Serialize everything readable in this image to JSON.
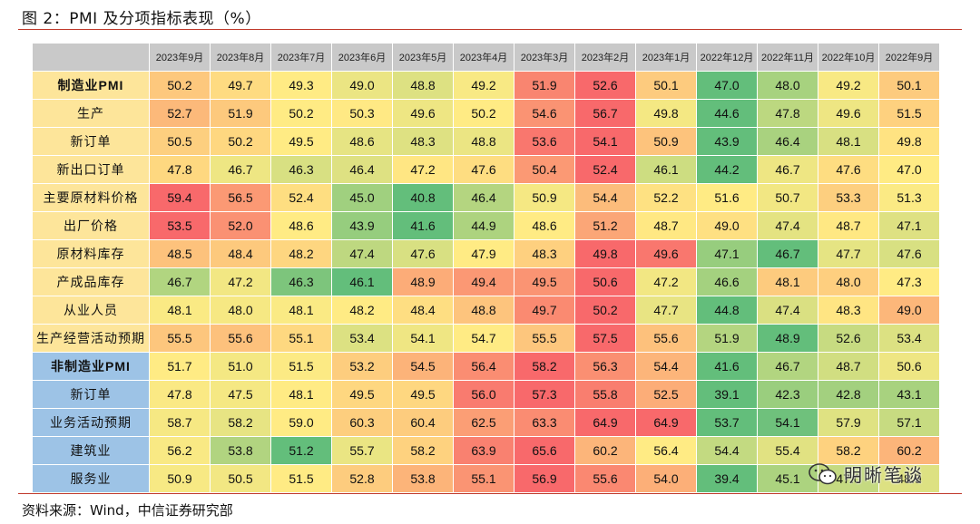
{
  "title": "图 2：PMI 及分项指标表现（%）",
  "source": "资料来源：Wind，中信证券研究部",
  "watermark": "明晰笔谈",
  "months": [
    "2023年9月",
    "2023年8月",
    "2023年7月",
    "2023年6月",
    "2023年5月",
    "2023年4月",
    "2023年3月",
    "2023年2月",
    "2023年1月",
    "2022年12月",
    "2022年11月",
    "2022年10月",
    "2022年9月"
  ],
  "rows": [
    {
      "label": "制造业PMI",
      "group": "mfg",
      "bold": true,
      "values": [
        50.2,
        49.7,
        49.3,
        49.0,
        48.8,
        49.2,
        51.9,
        52.6,
        50.1,
        47.0,
        48.0,
        49.2,
        50.1
      ]
    },
    {
      "label": "生产",
      "group": "mfg",
      "bold": false,
      "values": [
        52.7,
        51.9,
        50.2,
        50.3,
        49.6,
        50.2,
        54.6,
        56.7,
        49.8,
        44.6,
        47.8,
        49.6,
        51.5
      ]
    },
    {
      "label": "新订单",
      "group": "mfg",
      "bold": false,
      "values": [
        50.5,
        50.2,
        49.5,
        48.6,
        48.3,
        48.8,
        53.6,
        54.1,
        50.9,
        43.9,
        46.4,
        48.1,
        49.8
      ]
    },
    {
      "label": "新出口订单",
      "group": "mfg",
      "bold": false,
      "values": [
        47.8,
        46.7,
        46.3,
        46.4,
        47.2,
        47.6,
        50.4,
        52.4,
        46.1,
        44.2,
        46.7,
        47.6,
        47.0
      ]
    },
    {
      "label": "主要原材料价格",
      "group": "mfg",
      "bold": false,
      "values": [
        59.4,
        56.5,
        52.4,
        45.0,
        40.8,
        46.4,
        50.9,
        54.4,
        52.2,
        51.6,
        50.7,
        53.3,
        51.3
      ]
    },
    {
      "label": "出厂价格",
      "group": "mfg",
      "bold": false,
      "values": [
        53.5,
        52.0,
        48.6,
        43.9,
        41.6,
        44.9,
        48.6,
        51.2,
        48.7,
        49.0,
        47.4,
        48.7,
        47.1
      ]
    },
    {
      "label": "原材料库存",
      "group": "mfg",
      "bold": false,
      "values": [
        48.5,
        48.4,
        48.2,
        47.4,
        47.6,
        47.9,
        48.3,
        49.8,
        49.6,
        47.1,
        46.7,
        47.7,
        47.6
      ]
    },
    {
      "label": "产成品库存",
      "group": "mfg",
      "bold": false,
      "values": [
        46.7,
        47.2,
        46.3,
        46.1,
        48.9,
        49.4,
        49.5,
        50.6,
        47.2,
        46.6,
        48.1,
        48.0,
        47.3
      ]
    },
    {
      "label": "从业人员",
      "group": "mfg",
      "bold": false,
      "values": [
        48.1,
        48.0,
        48.1,
        48.2,
        48.4,
        48.8,
        49.7,
        50.2,
        47.7,
        44.8,
        47.4,
        48.3,
        49.0
      ]
    },
    {
      "label": "生产经营活动预期",
      "group": "mfg",
      "bold": false,
      "values": [
        55.5,
        55.6,
        55.1,
        53.4,
        54.1,
        54.7,
        55.5,
        57.5,
        55.6,
        51.9,
        48.9,
        52.6,
        53.4
      ]
    },
    {
      "label": "非制造业PMI",
      "group": "svc",
      "bold": true,
      "values": [
        51.7,
        51.0,
        51.5,
        53.2,
        54.5,
        56.4,
        58.2,
        56.3,
        54.4,
        41.6,
        46.7,
        48.7,
        50.6
      ]
    },
    {
      "label": "新订单",
      "group": "svc",
      "bold": false,
      "values": [
        47.8,
        47.5,
        48.1,
        49.5,
        49.5,
        56.0,
        57.3,
        55.8,
        52.5,
        39.1,
        42.3,
        42.8,
        43.1
      ]
    },
    {
      "label": "业务活动预期",
      "group": "svc",
      "bold": false,
      "values": [
        58.7,
        58.2,
        59.0,
        60.3,
        60.4,
        62.5,
        63.3,
        64.9,
        64.9,
        53.7,
        54.1,
        57.9,
        57.1
      ]
    },
    {
      "label": "建筑业",
      "group": "svc",
      "bold": false,
      "values": [
        56.2,
        53.8,
        51.2,
        55.7,
        58.2,
        63.9,
        65.6,
        60.2,
        56.4,
        54.4,
        55.4,
        58.2,
        60.2
      ]
    },
    {
      "label": "服务业",
      "group": "svc",
      "bold": false,
      "values": [
        50.9,
        50.5,
        51.5,
        52.8,
        53.8,
        55.1,
        56.9,
        55.6,
        54.0,
        39.4,
        45.1,
        47.0,
        48.9
      ]
    }
  ],
  "colors": {
    "low": "#63be7b",
    "mid": "#ffeb84",
    "high": "#f8696b",
    "mfg_label_bg": "#fde59a",
    "svc_label_bg": "#9dc3e6",
    "header_bg": "#c9c9c9",
    "rule": "#c0392b"
  }
}
